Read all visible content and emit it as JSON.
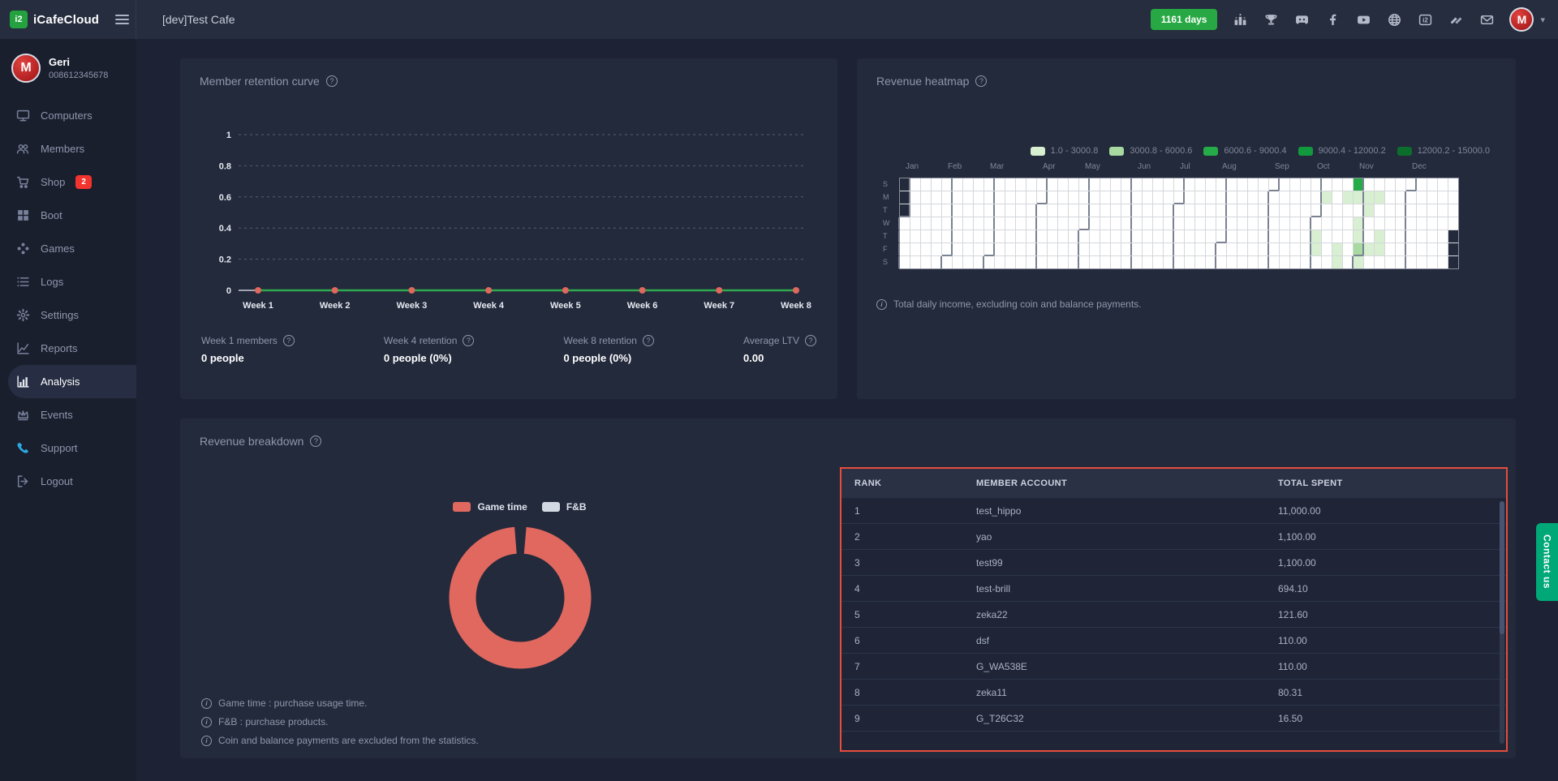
{
  "header": {
    "brand": "iCafeCloud",
    "logo_mark": "i2",
    "cafe_title": "[dev]Test Cafe",
    "days_badge": "1161 days",
    "social_icons": [
      "ranking",
      "trophy",
      "discord",
      "facebook",
      "youtube",
      "globe",
      "icafe-logo",
      "layers",
      "mail"
    ],
    "avatar_initial": "M"
  },
  "user": {
    "name": "Geri",
    "phone": "008612345678"
  },
  "sidebar": {
    "items": [
      {
        "label": "Computers",
        "icon": "monitor",
        "active": false
      },
      {
        "label": "Members",
        "icon": "members",
        "active": false
      },
      {
        "label": "Shop",
        "icon": "cart",
        "badge": "2",
        "active": false
      },
      {
        "label": "Boot",
        "icon": "windows",
        "active": false
      },
      {
        "label": "Games",
        "icon": "gamepad",
        "active": false
      },
      {
        "label": "Logs",
        "icon": "logs",
        "active": false
      },
      {
        "label": "Settings",
        "icon": "gear",
        "active": false
      },
      {
        "label": "Reports",
        "icon": "line-chart",
        "active": false
      },
      {
        "label": "Analysis",
        "icon": "bar-chart",
        "active": true
      },
      {
        "label": "Events",
        "icon": "crown",
        "active": false
      },
      {
        "label": "Support",
        "icon": "phone",
        "active": false,
        "icon_color": "blue"
      },
      {
        "label": "Logout",
        "icon": "logout",
        "active": false
      }
    ]
  },
  "retention": {
    "title": "Member retention curve",
    "stats": [
      {
        "label": "Week 1 members",
        "value": "0 people"
      },
      {
        "label": "Week 4 retention",
        "value": "0 people (0%)"
      },
      {
        "label": "Week 8 retention",
        "value": "0 people (0%)"
      },
      {
        "label": "Average LTV",
        "value": "0.00"
      }
    ]
  },
  "heatmap": {
    "title": "Revenue heatmap",
    "note": "Total daily income, excluding coin and balance payments."
  },
  "breakdown": {
    "title": "Revenue breakdown",
    "legend": [
      {
        "label": "Game time",
        "color": "#e0685e"
      },
      {
        "label": "F&B",
        "color": "#d3d9e3"
      }
    ],
    "notes": [
      "Game time : purchase usage time.",
      "F&B : purchase products.",
      "Coin and balance payments are excluded from the statistics."
    ]
  },
  "contact_us": "Contact us",
  "chart_data": [
    {
      "type": "line",
      "title": "Member retention curve",
      "x": [
        "Week 1",
        "Week 2",
        "Week 3",
        "Week 4",
        "Week 5",
        "Week 6",
        "Week 7",
        "Week 8"
      ],
      "series": [
        {
          "name": "retention",
          "values": [
            0,
            0,
            0,
            0,
            0,
            0,
            0,
            0
          ]
        }
      ],
      "ylim": [
        0,
        1
      ],
      "yticks": [
        0,
        0.2,
        0.4,
        0.6,
        0.8,
        1
      ],
      "grid": "dashed-horizontal",
      "line_color": "#2fa84f",
      "point_color": "#e0685e"
    },
    {
      "type": "heatmap",
      "title": "Revenue heatmap",
      "months": [
        "Jan",
        "Feb",
        "Mar",
        "Apr",
        "May",
        "Jun",
        "Jul",
        "Aug",
        "Sep",
        "Oct",
        "Nov",
        "Dec"
      ],
      "day_labels": [
        "S",
        "M",
        "T",
        "W",
        "T",
        "F",
        "S"
      ],
      "weeks": 53,
      "first_cell_row": 3,
      "last_cell_row": 3,
      "legend": [
        {
          "label": "1.0 - 3000.8",
          "color": "#d9efd2"
        },
        {
          "label": "3000.8 - 6000.6",
          "color": "#a7d9a0"
        },
        {
          "label": "6000.6 - 9000.4",
          "color": "#25ab47"
        },
        {
          "label": "9000.4 - 12000.2",
          "color": "#12993d"
        },
        {
          "label": "12000.2 - 15000.0",
          "color": "#0b6e2b"
        }
      ],
      "month_starts": [
        {
          "month": "Jan",
          "col": 0,
          "row": 3
        },
        {
          "month": "Feb",
          "col": 4,
          "row": 6
        },
        {
          "month": "Mar",
          "col": 8,
          "row": 6
        },
        {
          "month": "Apr",
          "col": 13,
          "row": 2
        },
        {
          "month": "May",
          "col": 17,
          "row": 4
        },
        {
          "month": "Jun",
          "col": 22,
          "row": 0
        },
        {
          "month": "Jul",
          "col": 26,
          "row": 2
        },
        {
          "month": "Aug",
          "col": 30,
          "row": 5
        },
        {
          "month": "Sep",
          "col": 35,
          "row": 1
        },
        {
          "month": "Oct",
          "col": 39,
          "row": 3
        },
        {
          "month": "Nov",
          "col": 43,
          "row": 6
        },
        {
          "month": "Dec",
          "col": 48,
          "row": 1
        }
      ],
      "cells": [
        {
          "col": 43,
          "row": 0,
          "level": 2
        },
        {
          "col": 40,
          "row": 1,
          "level": 0
        },
        {
          "col": 42,
          "row": 1,
          "level": 0
        },
        {
          "col": 43,
          "row": 1,
          "level": 0
        },
        {
          "col": 44,
          "row": 1,
          "level": 0
        },
        {
          "col": 45,
          "row": 1,
          "level": 0
        },
        {
          "col": 44,
          "row": 2,
          "level": 0
        },
        {
          "col": 43,
          "row": 3,
          "level": 0
        },
        {
          "col": 39,
          "row": 4,
          "level": 0
        },
        {
          "col": 43,
          "row": 4,
          "level": 0
        },
        {
          "col": 45,
          "row": 4,
          "level": 0
        },
        {
          "col": 39,
          "row": 5,
          "level": 0
        },
        {
          "col": 41,
          "row": 5,
          "level": 0
        },
        {
          "col": 43,
          "row": 5,
          "level": 1
        },
        {
          "col": 44,
          "row": 5,
          "level": 0
        },
        {
          "col": 45,
          "row": 5,
          "level": 0
        },
        {
          "col": 41,
          "row": 6,
          "level": 0
        },
        {
          "col": 43,
          "row": 6,
          "level": 0
        }
      ]
    },
    {
      "type": "donut",
      "title": "Revenue breakdown",
      "series": [
        {
          "name": "Game time",
          "value": 100,
          "color": "#e0685e"
        },
        {
          "name": "F&B",
          "value": 0,
          "color": "#d3d9e3"
        }
      ]
    },
    {
      "type": "table",
      "title": "Top spenders",
      "headers": [
        "RANK",
        "MEMBER ACCOUNT",
        "TOTAL SPENT"
      ],
      "rows": [
        [
          "1",
          "test_hippo",
          "11,000.00"
        ],
        [
          "2",
          "yao",
          "1,100.00"
        ],
        [
          "3",
          "test99",
          "1,100.00"
        ],
        [
          "4",
          "test-brill",
          "694.10"
        ],
        [
          "5",
          "zeka22",
          "121.60"
        ],
        [
          "6",
          "dsf",
          "110.00"
        ],
        [
          "7",
          "G_WA538E",
          "110.00"
        ],
        [
          "8",
          "zeka11",
          "80.31"
        ],
        [
          "9",
          "G_T26C32",
          "16.50"
        ]
      ]
    }
  ]
}
